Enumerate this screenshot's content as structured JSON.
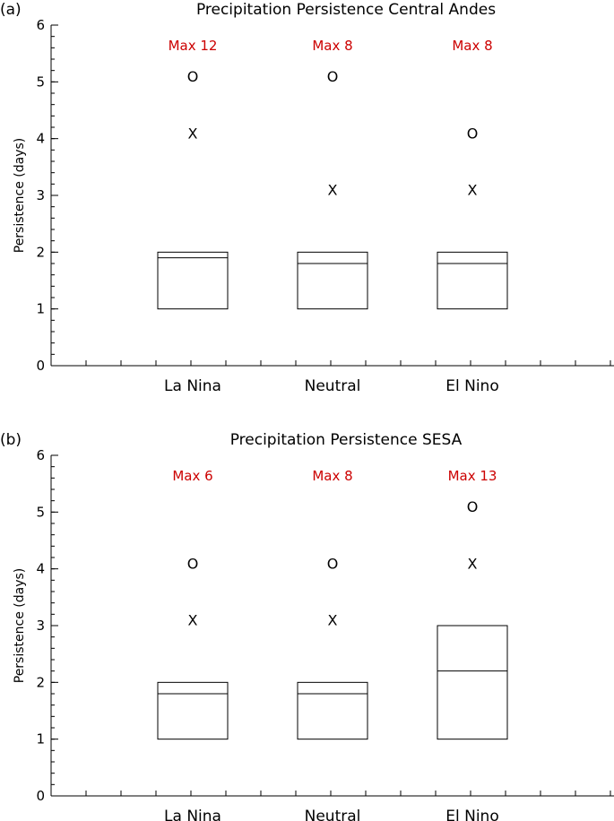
{
  "chart_data": [
    {
      "type": "box",
      "panel_label": "(a)",
      "title": "Precipitation Persistence Central Andes",
      "ylabel": "Persistence (days)",
      "ylim": [
        0,
        6
      ],
      "yticks": [
        0,
        1,
        2,
        3,
        4,
        5,
        6
      ],
      "categories": [
        "La Nina",
        "Neutral",
        "El Nino"
      ],
      "boxes": [
        {
          "category": "La Nina",
          "low": 1,
          "high": 2,
          "median": 1.9,
          "max_label": "Max 12",
          "markers": [
            {
              "symbol": "X",
              "value": 4.1
            },
            {
              "symbol": "O",
              "value": 5.1
            }
          ]
        },
        {
          "category": "Neutral",
          "low": 1,
          "high": 2,
          "median": 1.8,
          "max_label": "Max 8",
          "markers": [
            {
              "symbol": "X",
              "value": 3.1
            },
            {
              "symbol": "O",
              "value": 5.1
            }
          ]
        },
        {
          "category": "El Nino",
          "low": 1,
          "high": 2,
          "median": 1.8,
          "max_label": "Max 8",
          "markers": [
            {
              "symbol": "X",
              "value": 3.1
            },
            {
              "symbol": "O",
              "value": 4.1
            }
          ]
        }
      ]
    },
    {
      "type": "box",
      "panel_label": "(b)",
      "title": "Precipitation Persistence SESA",
      "ylabel": "Persistence (days)",
      "ylim": [
        0,
        6
      ],
      "yticks": [
        0,
        1,
        2,
        3,
        4,
        5,
        6
      ],
      "categories": [
        "La Nina",
        "Neutral",
        "El Nino"
      ],
      "boxes": [
        {
          "category": "La Nina",
          "low": 1,
          "high": 2,
          "median": 1.8,
          "max_label": "Max 6",
          "markers": [
            {
              "symbol": "X",
              "value": 3.1
            },
            {
              "symbol": "O",
              "value": 4.1
            }
          ]
        },
        {
          "category": "Neutral",
          "low": 1,
          "high": 2,
          "median": 1.8,
          "max_label": "Max 8",
          "markers": [
            {
              "symbol": "X",
              "value": 3.1
            },
            {
              "symbol": "O",
              "value": 4.1
            }
          ]
        },
        {
          "category": "El Nino",
          "low": 1,
          "high": 3,
          "median": 2.2,
          "max_label": "Max 13",
          "markers": [
            {
              "symbol": "X",
              "value": 4.1
            },
            {
              "symbol": "O",
              "value": 5.1
            }
          ]
        }
      ]
    }
  ],
  "colors": {
    "axis": "#000000",
    "max_label": "#cc0000"
  }
}
